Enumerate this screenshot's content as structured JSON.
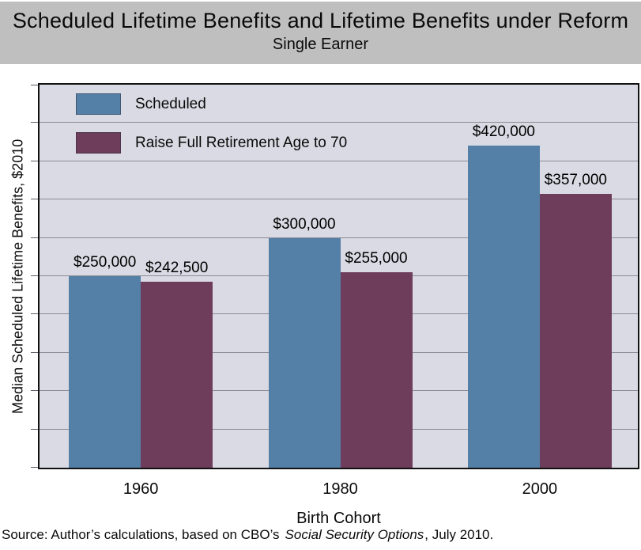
{
  "header": {
    "title": "Scheduled Lifetime Benefits and Lifetime Benefits under Reform",
    "subtitle": "Single Earner"
  },
  "chart_data": {
    "type": "bar",
    "title": "Scheduled Lifetime Benefits and Lifetime Benefits under Reform",
    "subtitle": "Single Earner",
    "categories": [
      "1960",
      "1980",
      "2000"
    ],
    "series": [
      {
        "name": "Scheduled",
        "color": "#547FA6",
        "values": [
          250000,
          300000,
          420000
        ],
        "data_labels": [
          "$250,000",
          "$300,000",
          "$420,000"
        ]
      },
      {
        "name": "Raise Full Retirement Age to 70",
        "color": "#6E3D5B",
        "values": [
          242500,
          255000,
          357000
        ],
        "data_labels": [
          "$242,500",
          "$255,000",
          "$357,000"
        ]
      }
    ],
    "xlabel": "Birth Cohort",
    "ylabel": "Median Scheduled Lifetime Benefits, $2010",
    "ylim": [
      0,
      500000
    ],
    "gridline_interval": 50000,
    "grid": true,
    "legend_position": "top-left",
    "y_tick_labels_shown": false
  },
  "source": {
    "prefix": "Source: Author’s calculations, based on CBO’s",
    "italic": "Social Security Options",
    "suffix": ", July 2010."
  },
  "colors": {
    "title_background": "#BFBFBF",
    "plot_background": "#D9DAE3",
    "gridline": "#8B8B94",
    "series_scheduled": "#547FA6",
    "series_reform": "#6E3D5B"
  }
}
